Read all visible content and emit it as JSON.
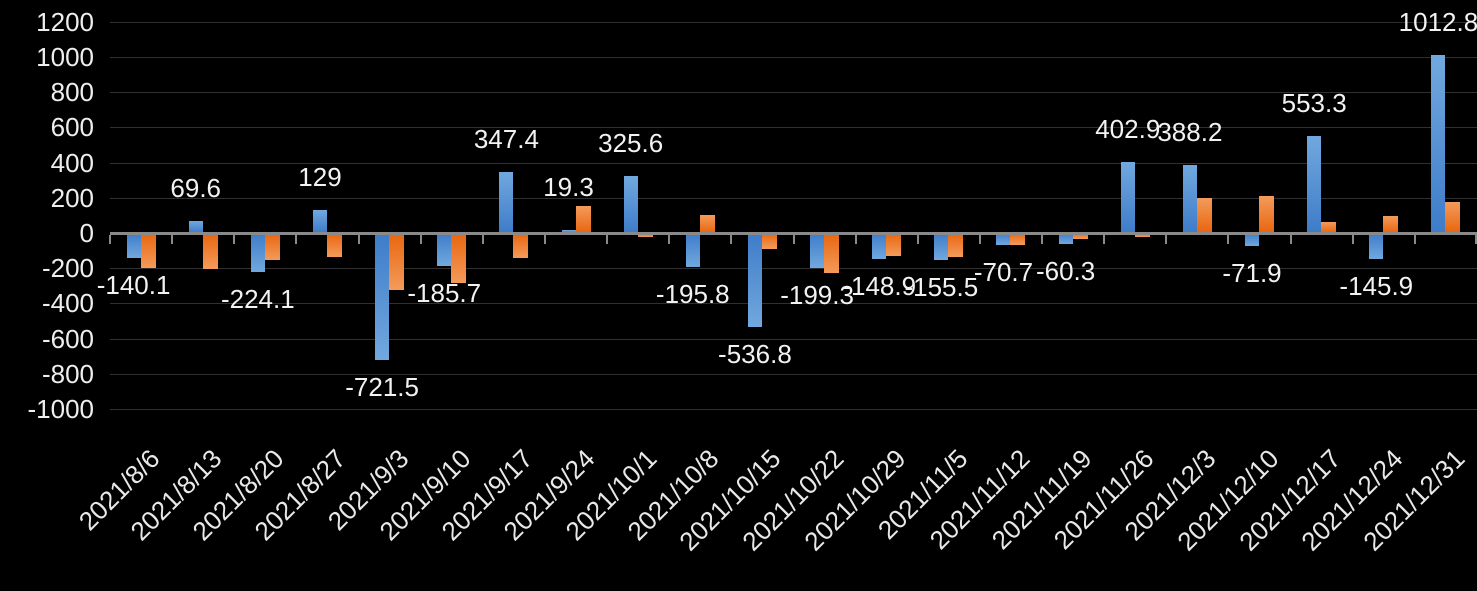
{
  "chart_data": {
    "type": "bar",
    "title": "",
    "legend_position": "none",
    "background_color": "#000000",
    "grid": true,
    "gridline_color": "#303030",
    "axis_color": "#8a8a8a",
    "text_color": "#f2f2f2",
    "ylim": [
      -1000,
      1200
    ],
    "ytick_step": 200,
    "yticks": [
      1200,
      1000,
      800,
      600,
      400,
      200,
      0,
      -200,
      -400,
      -600,
      -800,
      -1000
    ],
    "categories": [
      "2021/8/6",
      "2021/8/13",
      "2021/8/20",
      "2021/8/27",
      "2021/9/3",
      "2021/9/10",
      "2021/9/17",
      "2021/9/24",
      "2021/10/1",
      "2021/10/8",
      "2021/10/15",
      "2021/10/22",
      "2021/10/29",
      "2021/11/5",
      "2021/11/12",
      "2021/11/19",
      "2021/11/26",
      "2021/12/3",
      "2021/12/10",
      "2021/12/17",
      "2021/12/24",
      "2021/12/31"
    ],
    "series": [
      {
        "name": "blue-series",
        "color_light": "#71a8de",
        "color_dark": "#3e7cc9",
        "values": [
          -140.1,
          69.6,
          -224.1,
          129,
          -721.5,
          -185.7,
          347.4,
          19.3,
          325.6,
          -195.8,
          -536.8,
          -199.3,
          -148.9,
          -155.5,
          -70.7,
          -60.3,
          402.9,
          388.2,
          -71.9,
          553.3,
          -145.9,
          1012.8
        ],
        "data_labels": [
          "-140.1",
          "69.6",
          "-224.1",
          "129",
          "-721.5",
          "-185.7",
          "347.4",
          "19.3",
          "325.6",
          "-195.8",
          "-536.8",
          "-199.3",
          "-148.9",
          "-155.5",
          "-70.7",
          "-60.3",
          "402.9",
          "388.2",
          "-71.9",
          "553.3",
          "-145.9",
          "1012.8"
        ]
      },
      {
        "name": "orange-series",
        "color_light": "#f49b5b",
        "color_dark": "#e8650e",
        "values": [
          -198,
          -203,
          -153,
          -139,
          -325,
          -282,
          -143,
          155,
          -20,
          100,
          -90,
          -228,
          -128,
          -136,
          -68,
          -34,
          -25,
          200,
          210,
          61,
          95,
          178
        ],
        "data_labels": []
      }
    ]
  }
}
